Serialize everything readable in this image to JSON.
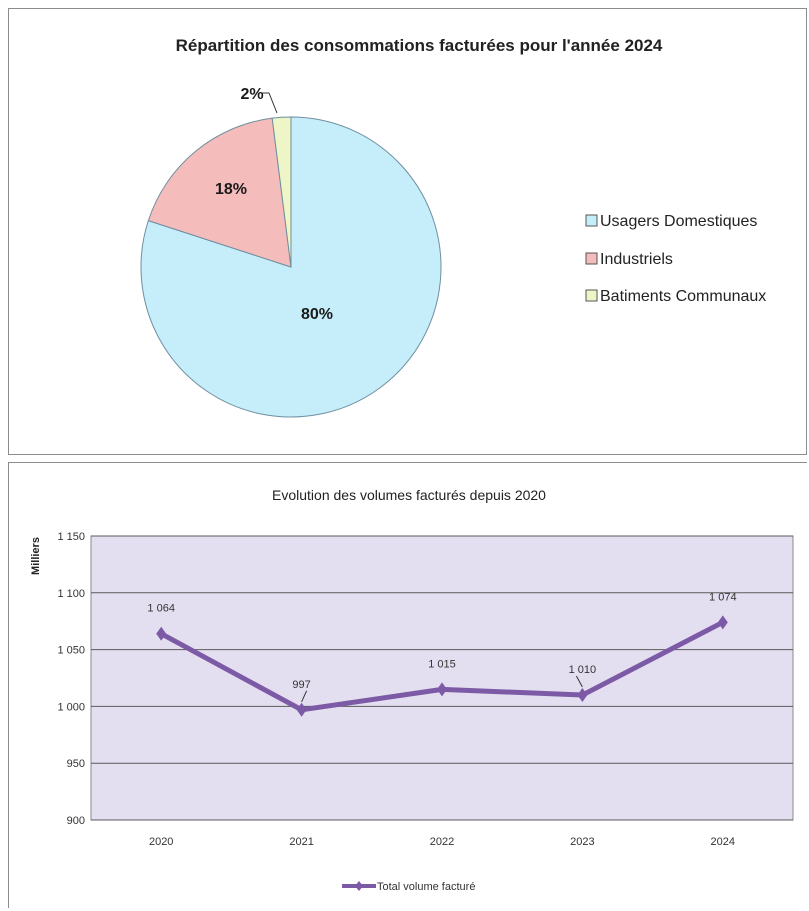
{
  "chart_data": [
    {
      "type": "pie",
      "title": "Répartition des consommations facturées pour l'année 2024",
      "slices": [
        {
          "label": "Usagers Domestiques",
          "value": 80,
          "display": "80%",
          "color": "#c6eefa"
        },
        {
          "label": "Industriels",
          "value": 18,
          "display": "18%",
          "color": "#f5bcbc"
        },
        {
          "label": "Batiments Communaux",
          "value": 2,
          "display": "2%",
          "color": "#eef6c8"
        }
      ],
      "legend_position": "right"
    },
    {
      "type": "line",
      "title": "Evolution des volumes facturés depuis 2020",
      "ylabel": "Milliers",
      "ylim": [
        900,
        1150
      ],
      "yticks": [
        "900",
        "950",
        "1 000",
        "1 050",
        "1 100",
        "1 150"
      ],
      "categories": [
        "2020",
        "2021",
        "2022",
        "2023",
        "2024"
      ],
      "series": [
        {
          "name": "Total volume facturé",
          "values": [
            1064,
            997,
            1015,
            1010,
            1074
          ],
          "labels": [
            "1 064",
            "997",
            "1 015",
            "1 010",
            "1 074"
          ],
          "color": "#7c5aa6"
        }
      ],
      "grid": true,
      "plot_background": "#e4dff0",
      "legend_position": "bottom"
    }
  ]
}
